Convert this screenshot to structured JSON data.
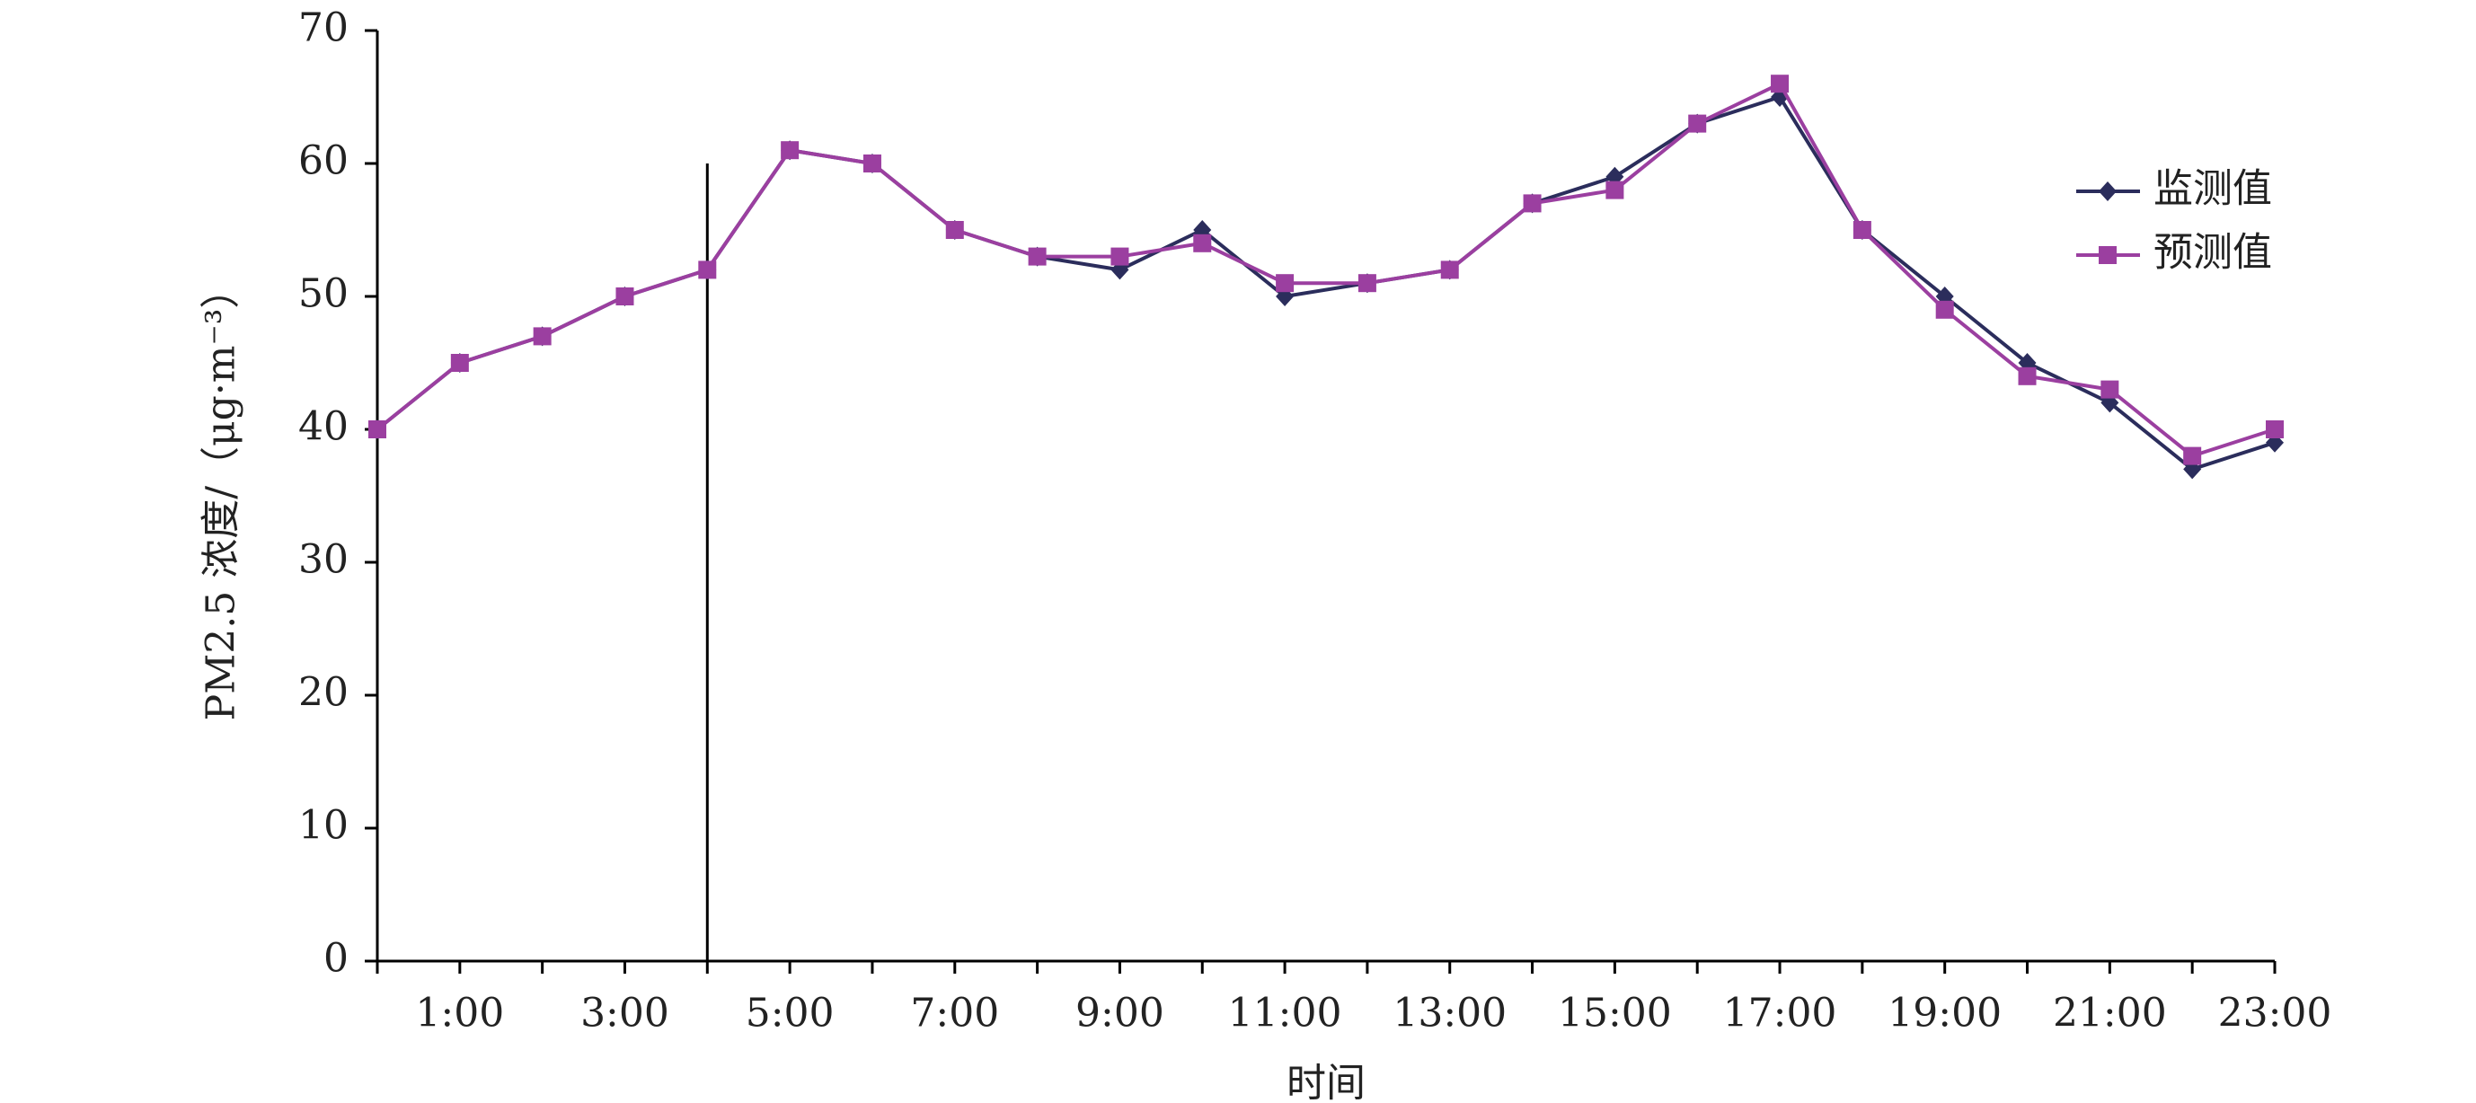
{
  "chart_data": {
    "type": "line",
    "x_label": "时间",
    "y_label": "PM2.5 浓度/（μg·m⁻³）",
    "categories": [
      null,
      "1:00",
      null,
      "3:00",
      null,
      "5:00",
      null,
      "7:00",
      null,
      "9:00",
      null,
      "11:00",
      null,
      "13:00",
      null,
      "15:00",
      null,
      "17:00",
      null,
      "19:00",
      null,
      "21:00",
      null,
      "23:00"
    ],
    "series": [
      {
        "name": "监测值",
        "color": "#2b2d5c",
        "marker": "diamond",
        "values": [
          40,
          45,
          47,
          50,
          52,
          61,
          60,
          55,
          53,
          52,
          55,
          50,
          51,
          52,
          57,
          59,
          63,
          65,
          55,
          50,
          45,
          42,
          37,
          39
        ]
      },
      {
        "name": "预测值",
        "color": "#9b3fa0",
        "marker": "square",
        "values": [
          40,
          45,
          47,
          50,
          52,
          61,
          60,
          55,
          53,
          53,
          54,
          51,
          51,
          52,
          57,
          58,
          63,
          66,
          55,
          49,
          44,
          43,
          38,
          40
        ]
      }
    ],
    "vline": {
      "at": 4,
      "ymax": 60
    },
    "ylim": [
      0,
      70
    ],
    "yticks": [
      0,
      10,
      20,
      30,
      40,
      50,
      60,
      70
    ],
    "legend": "upper-right",
    "grid": false
  }
}
